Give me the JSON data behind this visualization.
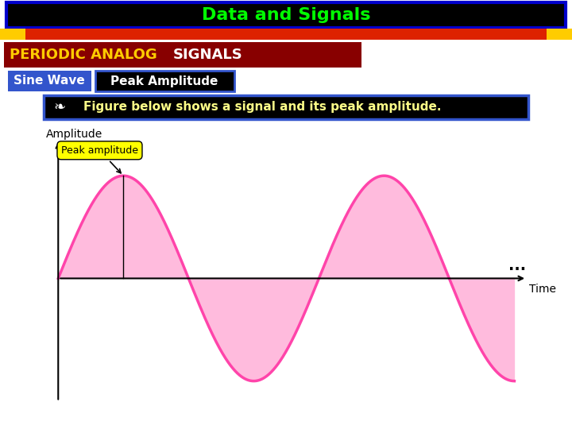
{
  "title": "Data and Signals",
  "title_color": "#00ff00",
  "title_bg": "#000000",
  "title_border": "#0000cc",
  "red_bar_color": "#dd2200",
  "yellow_rect_color": "#ffcc00",
  "section_label": "PERIODIC ANALOG SIGNALS",
  "section_label_color1": "#ffcc00",
  "section_label_color2": "#ff3333",
  "section_label_color3": "white",
  "section_bg": "#880000",
  "tab1_text": "Sine Wave",
  "tab1_bg": "#3355cc",
  "tab2_text": "Peak Amplitude",
  "tab2_bg": "#000000",
  "tab2_border": "#3355cc",
  "info_text": "  Figure below shows a signal and its peak amplitude.",
  "info_bg": "#000000",
  "info_border": "#3355cc",
  "info_text_color": "#ffff88",
  "sine_color": "#ff44aa",
  "sine_fill_color": "#ffbbdd",
  "annotation_text": "Peak amplitude",
  "annotation_bg": "#ffff00",
  "amplitude_label": "Amplitude",
  "time_label": "Time",
  "dots_text": "...",
  "bg_color": "#ffffff"
}
